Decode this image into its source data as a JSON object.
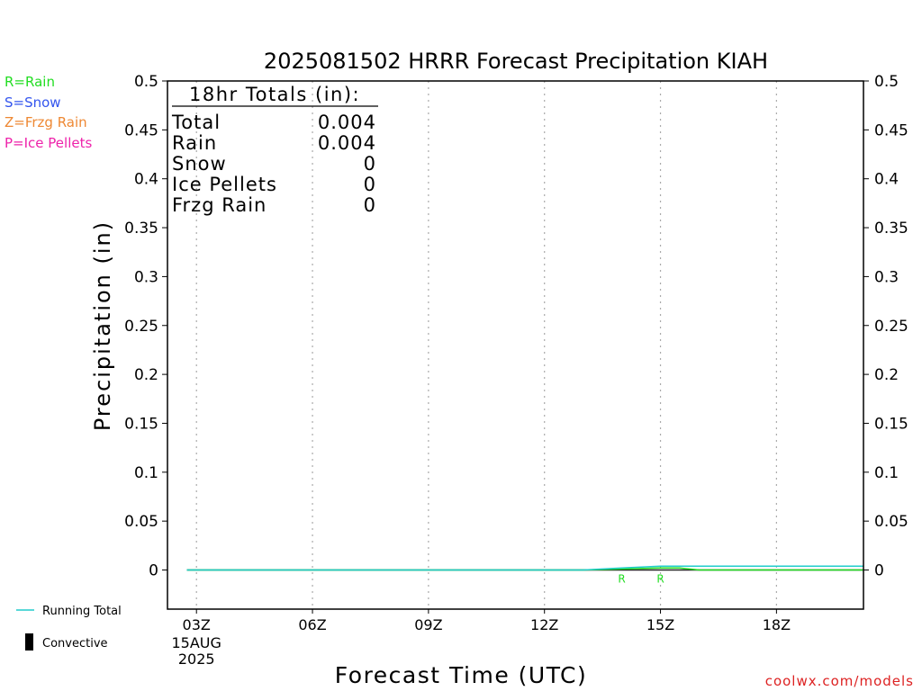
{
  "header": {
    "title": "2025081502 HRRR Forecast Precipitation KIAH"
  },
  "precip_types": [
    {
      "label": "R=Rain",
      "color": "#22dd22"
    },
    {
      "label": "S=Snow",
      "color": "#3355ee"
    },
    {
      "label": "Z=Frzg Rain",
      "color": "#ee8833"
    },
    {
      "label": "P=Ice Pellets",
      "color": "#ee22aa"
    }
  ],
  "totals": {
    "heading": "18hr Totals (in):",
    "rows": [
      {
        "label": "Total",
        "value": "0.004"
      },
      {
        "label": "Rain",
        "value": "0.004"
      },
      {
        "label": "Snow",
        "value": "0"
      },
      {
        "label": "Ice Pellets",
        "value": "0"
      },
      {
        "label": "Frzg Rain",
        "value": "0"
      }
    ]
  },
  "bottom_legend": {
    "running_total": "Running Total",
    "convective": "Convective"
  },
  "watermark": "coolwx.com/models",
  "colors": {
    "running_total": "#22cccc",
    "rain": "#22dd22",
    "convective": "#000000",
    "grid": "#aaaaaa"
  },
  "chart_data": {
    "type": "line",
    "title": "2025081502 HRRR Forecast Precipitation KIAH",
    "xlabel": "Forecast Time (UTC)",
    "ylabel": "Precipitation (in)",
    "ylim": [
      -0.04,
      0.5
    ],
    "y_ticks": [
      0,
      0.05,
      0.1,
      0.15,
      0.2,
      0.25,
      0.3,
      0.35,
      0.4,
      0.45,
      0.5
    ],
    "y_tick_labels": [
      "0",
      "0.05",
      "0.1",
      "0.15",
      "0.2",
      "0.25",
      "0.3",
      "0.35",
      "0.4",
      "0.45",
      "0.5"
    ],
    "xlim_hours_utc": [
      2.25,
      20.25
    ],
    "x_ticks": [
      {
        "hour": 3,
        "label": "03Z",
        "sublabels": [
          "15AUG",
          "2025"
        ]
      },
      {
        "hour": 6,
        "label": "06Z"
      },
      {
        "hour": 9,
        "label": "09Z"
      },
      {
        "hour": 12,
        "label": "12Z"
      },
      {
        "hour": 15,
        "label": "15Z"
      },
      {
        "hour": 18,
        "label": "18Z"
      }
    ],
    "grid": "vertical dotted at ticks",
    "series": [
      {
        "name": "Running Total",
        "color": "#22cccc",
        "x": [
          2.75,
          13,
          14,
          15,
          16,
          17,
          18,
          19,
          20.25
        ],
        "values": [
          0,
          0,
          0.002,
          0.004,
          0.004,
          0.004,
          0.004,
          0.004,
          0.004
        ]
      },
      {
        "name": "Rain",
        "color": "#22dd22",
        "x": [
          2.75,
          13,
          14,
          15,
          15.5,
          16,
          20.25
        ],
        "values": [
          0,
          0,
          0.001,
          0.002,
          0.002,
          0,
          0
        ]
      }
    ],
    "precip_markers": [
      {
        "hour": 14,
        "label": "R",
        "color": "#22dd22"
      },
      {
        "hour": 15,
        "label": "R",
        "color": "#22dd22"
      }
    ]
  }
}
